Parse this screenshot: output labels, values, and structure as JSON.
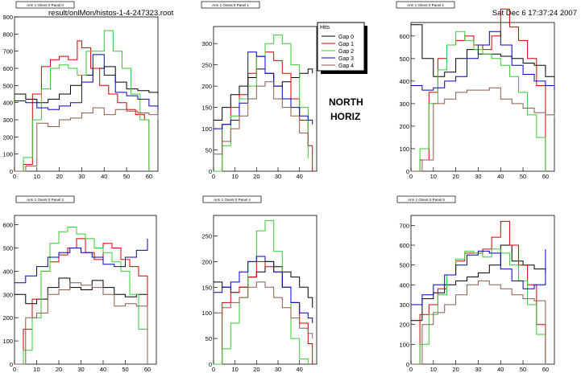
{
  "header": {
    "file_label": "result/onlMon/histos-1-4-247323.root",
    "date_label": "Sat Dec  6 17:37:24 2007"
  },
  "annotation": {
    "line1": "NORTH",
    "line2": "HORIZ"
  },
  "legend": {
    "title": "Hits",
    "entries": [
      "Gap 0",
      "Gap 1",
      "Gap 2",
      "Gap 3",
      "Gap 4"
    ]
  },
  "colors": {
    "gap0": "#000000",
    "gap1": "#d40000",
    "gap2": "#33cc33",
    "gap3": "#0000cc",
    "gap4": "#8b5a4a"
  },
  "chart_data": [
    {
      "type": "line",
      "title": "Arm 1 Orient 0 Panel 0",
      "xlim": [
        0,
        64
      ],
      "ylim": [
        0,
        900
      ],
      "xticks": [
        0,
        10,
        20,
        30,
        40,
        50,
        60
      ],
      "yticks": [
        0,
        100,
        200,
        300,
        400,
        500,
        600,
        700,
        800,
        900
      ],
      "series": [
        {
          "name": "Gap 0",
          "x": [
            0,
            5,
            10,
            15,
            20,
            25,
            30,
            35,
            40,
            45,
            50,
            55,
            60,
            64
          ],
          "y": [
            450,
            420,
            400,
            420,
            450,
            500,
            560,
            600,
            610,
            520,
            480,
            470,
            460,
            450
          ]
        },
        {
          "name": "Gap 1",
          "x": [
            0,
            4,
            8,
            12,
            16,
            20,
            24,
            28,
            30,
            34,
            38,
            42,
            46,
            50,
            54,
            58,
            60
          ],
          "y": [
            0,
            40,
            450,
            610,
            650,
            670,
            650,
            760,
            720,
            600,
            500,
            450,
            400,
            360,
            330,
            300,
            0
          ]
        },
        {
          "name": "Gap 2",
          "x": [
            0,
            4,
            8,
            12,
            16,
            20,
            24,
            28,
            32,
            36,
            40,
            44,
            48,
            52,
            56,
            60
          ],
          "y": [
            0,
            80,
            300,
            480,
            600,
            620,
            600,
            560,
            700,
            700,
            820,
            700,
            600,
            450,
            300,
            0
          ]
        },
        {
          "name": "Gap 3",
          "x": [
            0,
            5,
            10,
            15,
            20,
            25,
            30,
            35,
            40,
            45,
            50,
            55,
            60,
            64
          ],
          "y": [
            410,
            400,
            370,
            360,
            380,
            400,
            520,
            680,
            560,
            460,
            440,
            420,
            380,
            360
          ]
        },
        {
          "name": "Gap 4",
          "x": [
            0,
            5,
            10,
            15,
            20,
            25,
            30,
            35,
            40,
            45,
            50,
            55,
            60,
            64
          ],
          "y": [
            0,
            30,
            280,
            260,
            300,
            310,
            340,
            370,
            330,
            360,
            350,
            340,
            330,
            300
          ]
        }
      ]
    },
    {
      "type": "line",
      "title": "Arm 1 Orient 0 Panel 1",
      "xlim": [
        0,
        48
      ],
      "ylim": [
        0,
        340
      ],
      "xticks": [
        0,
        10,
        20,
        30,
        40
      ],
      "yticks": [
        0,
        50,
        100,
        150,
        200,
        250,
        300
      ],
      "series": [
        {
          "name": "Gap 0",
          "x": [
            0,
            4,
            8,
            12,
            16,
            20,
            24,
            28,
            32,
            36,
            40,
            44,
            46
          ],
          "y": [
            120,
            150,
            180,
            200,
            220,
            240,
            230,
            200,
            210,
            220,
            230,
            240,
            230
          ]
        },
        {
          "name": "Gap 1",
          "x": [
            0,
            4,
            8,
            12,
            16,
            20,
            24,
            28,
            32,
            36,
            40,
            44,
            46
          ],
          "y": [
            0,
            110,
            150,
            180,
            230,
            270,
            280,
            260,
            230,
            170,
            120,
            60,
            0
          ]
        },
        {
          "name": "Gap 2",
          "x": [
            0,
            4,
            8,
            12,
            16,
            20,
            24,
            28,
            32,
            36,
            40,
            44
          ],
          "y": [
            0,
            60,
            130,
            170,
            200,
            270,
            300,
            320,
            300,
            250,
            150,
            30
          ]
        },
        {
          "name": "Gap 3",
          "x": [
            0,
            4,
            8,
            12,
            16,
            20,
            24,
            28,
            32,
            36,
            40,
            44,
            46
          ],
          "y": [
            100,
            110,
            120,
            160,
            280,
            270,
            230,
            200,
            170,
            150,
            130,
            120,
            110
          ]
        },
        {
          "name": "Gap 4",
          "x": [
            0,
            4,
            8,
            12,
            16,
            20,
            24,
            28,
            32,
            36,
            40,
            44,
            46
          ],
          "y": [
            40,
            70,
            100,
            130,
            170,
            200,
            210,
            170,
            150,
            130,
            90,
            60,
            50
          ]
        }
      ]
    },
    {
      "type": "line",
      "title": "Arm 1 Orient 0 Panel 2",
      "xlim": [
        0,
        64
      ],
      "ylim": [
        0,
        660
      ],
      "xticks": [
        0,
        10,
        20,
        30,
        40,
        50,
        60
      ],
      "yticks": [
        0,
        100,
        200,
        300,
        400,
        500,
        600
      ],
      "series": [
        {
          "name": "Gap 0",
          "x": [
            0,
            5,
            10,
            15,
            20,
            25,
            30,
            35,
            40,
            45,
            50,
            55,
            60,
            64
          ],
          "y": [
            650,
            500,
            420,
            440,
            500,
            540,
            520,
            520,
            510,
            500,
            480,
            470,
            420,
            410
          ]
        },
        {
          "name": "Gap 1",
          "x": [
            0,
            4,
            8,
            12,
            16,
            20,
            24,
            28,
            32,
            36,
            40,
            44,
            48,
            52,
            56,
            60
          ],
          "y": [
            0,
            50,
            350,
            500,
            560,
            580,
            600,
            560,
            540,
            600,
            720,
            640,
            580,
            500,
            380,
            0
          ]
        },
        {
          "name": "Gap 2",
          "x": [
            0,
            4,
            8,
            12,
            16,
            20,
            24,
            28,
            32,
            36,
            40,
            44,
            48,
            52,
            56,
            60
          ],
          "y": [
            0,
            100,
            300,
            450,
            560,
            620,
            580,
            540,
            520,
            500,
            470,
            420,
            350,
            250,
            150,
            0
          ]
        },
        {
          "name": "Gap 3",
          "x": [
            0,
            5,
            10,
            15,
            20,
            25,
            30,
            35,
            40,
            45,
            50,
            55,
            60,
            64
          ],
          "y": [
            380,
            360,
            370,
            400,
            420,
            500,
            560,
            620,
            560,
            470,
            430,
            400,
            380,
            360
          ]
        },
        {
          "name": "Gap 4",
          "x": [
            0,
            5,
            10,
            15,
            20,
            25,
            30,
            35,
            40,
            45,
            50,
            55,
            60,
            64
          ],
          "y": [
            0,
            50,
            300,
            320,
            350,
            360,
            360,
            370,
            320,
            300,
            280,
            260,
            250,
            240
          ]
        }
      ]
    },
    {
      "type": "line",
      "title": "Arm 1 Orient 0 Panel 3",
      "xlim": [
        0,
        64
      ],
      "ylim": [
        0,
        640
      ],
      "xticks": [
        0,
        10,
        20,
        30,
        40,
        50,
        60
      ],
      "yticks": [
        0,
        100,
        200,
        300,
        400,
        500,
        600
      ],
      "series": [
        {
          "name": "Gap 0",
          "x": [
            0,
            5,
            10,
            15,
            20,
            25,
            30,
            35,
            40,
            45,
            50,
            55,
            60
          ],
          "y": [
            300,
            260,
            280,
            330,
            370,
            330,
            320,
            360,
            330,
            300,
            290,
            300,
            310
          ]
        },
        {
          "name": "Gap 1",
          "x": [
            0,
            4,
            8,
            12,
            16,
            20,
            24,
            28,
            32,
            36,
            40,
            44,
            48,
            52,
            56,
            60
          ],
          "y": [
            0,
            150,
            280,
            400,
            440,
            470,
            500,
            540,
            480,
            450,
            520,
            500,
            450,
            420,
            380,
            0
          ]
        },
        {
          "name": "Gap 2",
          "x": [
            0,
            4,
            8,
            12,
            16,
            20,
            24,
            28,
            32,
            36,
            40,
            44,
            48,
            52,
            56,
            60
          ],
          "y": [
            0,
            60,
            200,
            400,
            520,
            570,
            590,
            560,
            540,
            500,
            480,
            440,
            400,
            300,
            150,
            0
          ]
        },
        {
          "name": "Gap 3",
          "x": [
            0,
            5,
            10,
            15,
            20,
            25,
            30,
            35,
            40,
            45,
            50,
            55,
            60
          ],
          "y": [
            350,
            380,
            420,
            460,
            480,
            500,
            480,
            460,
            430,
            420,
            460,
            490,
            540
          ]
        },
        {
          "name": "Gap 4",
          "x": [
            0,
            5,
            10,
            15,
            20,
            25,
            30,
            35,
            40,
            45,
            50,
            55,
            60
          ],
          "y": [
            0,
            200,
            220,
            300,
            320,
            350,
            340,
            330,
            300,
            250,
            260,
            250,
            0
          ]
        }
      ]
    },
    {
      "type": "line",
      "title": "Arm 1 Orient 0 Panel 4",
      "xlim": [
        0,
        48
      ],
      "ylim": [
        0,
        290
      ],
      "xticks": [
        0,
        10,
        20,
        30,
        40
      ],
      "yticks": [
        0,
        50,
        100,
        150,
        200,
        250
      ],
      "series": [
        {
          "name": "Gap 0",
          "x": [
            0,
            4,
            8,
            12,
            16,
            20,
            24,
            28,
            32,
            36,
            40,
            44,
            46
          ],
          "y": [
            160,
            150,
            140,
            150,
            170,
            180,
            200,
            190,
            180,
            170,
            150,
            130,
            110
          ]
        },
        {
          "name": "Gap 1",
          "x": [
            0,
            4,
            8,
            12,
            16,
            20,
            24,
            28,
            32,
            36,
            40,
            44,
            46
          ],
          "y": [
            0,
            120,
            140,
            150,
            170,
            200,
            190,
            180,
            150,
            120,
            80,
            40,
            0
          ]
        },
        {
          "name": "Gap 2",
          "x": [
            0,
            4,
            8,
            12,
            16,
            20,
            24,
            28,
            32,
            36,
            40,
            44
          ],
          "y": [
            0,
            30,
            80,
            130,
            200,
            260,
            280,
            220,
            150,
            50,
            10,
            0
          ]
        },
        {
          "name": "Gap 3",
          "x": [
            0,
            4,
            8,
            12,
            16,
            20,
            24,
            28,
            32,
            36,
            40,
            44,
            46
          ],
          "y": [
            140,
            150,
            160,
            180,
            200,
            210,
            200,
            180,
            150,
            120,
            100,
            90,
            80
          ]
        },
        {
          "name": "Gap 4",
          "x": [
            0,
            4,
            8,
            12,
            16,
            20,
            24,
            28,
            32,
            36,
            40,
            44,
            46
          ],
          "y": [
            100,
            110,
            120,
            130,
            150,
            160,
            150,
            130,
            110,
            90,
            70,
            60,
            50
          ]
        }
      ]
    },
    {
      "type": "line",
      "title": "Arm 1 Orient 0 Panel 5",
      "xlim": [
        0,
        64
      ],
      "ylim": [
        0,
        750
      ],
      "xticks": [
        0,
        10,
        20,
        30,
        40,
        50,
        60
      ],
      "yticks": [
        0,
        100,
        200,
        300,
        400,
        500,
        600,
        700
      ],
      "series": [
        {
          "name": "Gap 0",
          "x": [
            0,
            5,
            10,
            15,
            20,
            25,
            30,
            35,
            40,
            45,
            50,
            55,
            60
          ],
          "y": [
            220,
            330,
            360,
            400,
            420,
            440,
            460,
            500,
            600,
            520,
            500,
            480,
            460
          ]
        },
        {
          "name": "Gap 1",
          "x": [
            0,
            4,
            8,
            12,
            16,
            20,
            24,
            28,
            32,
            36,
            40,
            44,
            48,
            52,
            56,
            60
          ],
          "y": [
            0,
            250,
            300,
            380,
            450,
            520,
            560,
            560,
            580,
            640,
            720,
            600,
            500,
            400,
            200,
            0
          ]
        },
        {
          "name": "Gap 2",
          "x": [
            0,
            4,
            8,
            12,
            16,
            20,
            24,
            28,
            32,
            36,
            40,
            44,
            48,
            52,
            56,
            60
          ],
          "y": [
            0,
            100,
            250,
            350,
            450,
            530,
            570,
            560,
            540,
            580,
            560,
            500,
            420,
            300,
            150,
            0
          ]
        },
        {
          "name": "Gap 3",
          "x": [
            0,
            5,
            10,
            15,
            20,
            25,
            30,
            35,
            40,
            45,
            50,
            55,
            60
          ],
          "y": [
            300,
            350,
            400,
            450,
            500,
            550,
            570,
            560,
            480,
            420,
            380,
            400,
            580
          ]
        },
        {
          "name": "Gap 4",
          "x": [
            0,
            5,
            10,
            15,
            20,
            25,
            30,
            35,
            40,
            45,
            50,
            55,
            60
          ],
          "y": [
            0,
            200,
            260,
            300,
            350,
            400,
            420,
            400,
            380,
            350,
            330,
            320,
            0
          ]
        }
      ]
    }
  ]
}
